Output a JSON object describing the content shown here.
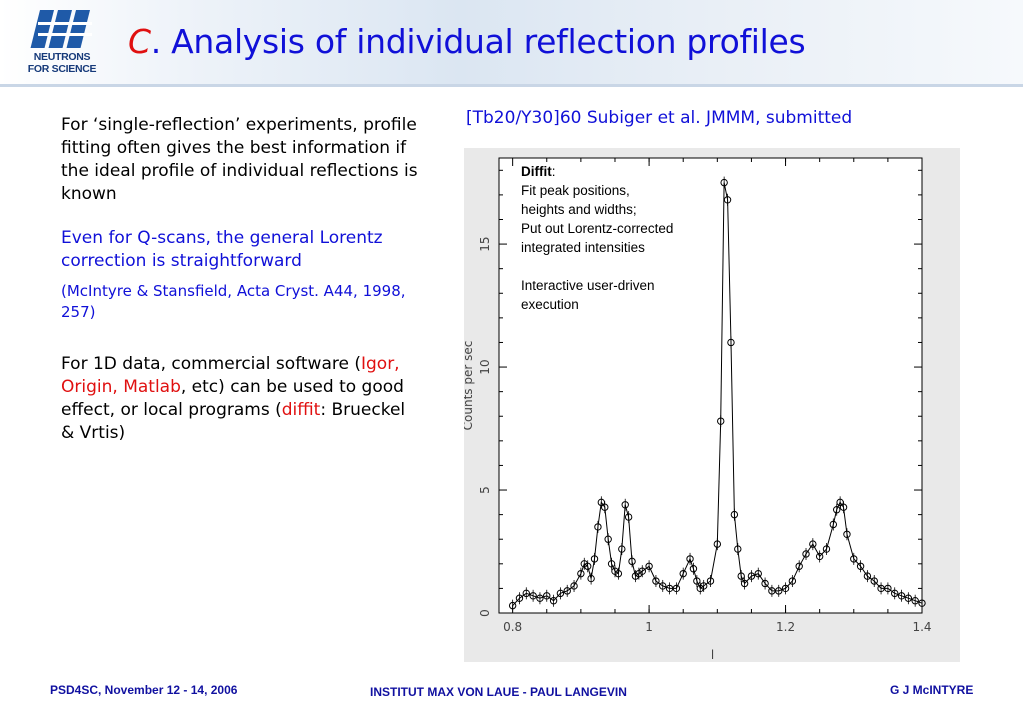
{
  "header": {
    "logo_text_1": "NEUTRONS",
    "logo_text_2": "FOR SCIENCE",
    "title_prefix": "C",
    "title_rest": ". Analysis of individual reflection profiles"
  },
  "left": {
    "p1": "For ‘single-reflection’ experiments, profile fitting often gives the best information if the ideal profile of individual reflections is known",
    "p2": "Even for Q-scans, the general Lorentz correction is straightforward",
    "p3": "(McIntyre & Stansfield, Acta Cryst. A44, 1998, 257)",
    "p4_a": "For 1D data, commercial software (",
    "p4_b": "Igor, Origin, Matlab",
    "p4_c": ", etc) can be used to good effect, or local programs (",
    "p4_d": "diffit",
    "p4_e": ": Brueckel & Vrtis)"
  },
  "right": {
    "reference": "[Tb20/Y30]60 Subiger et al. JMMM, submitted",
    "annot_title": "Diffit",
    "annot_colon": ":",
    "annot_l1": "Fit peak positions,",
    "annot_l2": "heights and widths;",
    "annot_l3": "Put out Lorentz-corrected",
    "annot_l4": "integrated intensities",
    "annot_l5": "Interactive user-driven",
    "annot_l6": "execution"
  },
  "chart_data": {
    "type": "scatter",
    "xlabel": "l",
    "ylabel": "Counts per sec",
    "xlim": [
      0.78,
      1.4
    ],
    "ylim": [
      0,
      18.5
    ],
    "xticks": [
      "0.8",
      "1",
      "1.2",
      "1.4"
    ],
    "yticks": [
      "0",
      "5",
      "10",
      "15"
    ],
    "background": "#e9e9e9",
    "series": [
      {
        "points": [
          [
            0.8,
            0.3
          ],
          [
            0.81,
            0.6
          ],
          [
            0.82,
            0.8
          ],
          [
            0.83,
            0.7
          ],
          [
            0.84,
            0.6
          ],
          [
            0.85,
            0.7
          ],
          [
            0.86,
            0.5
          ],
          [
            0.87,
            0.8
          ],
          [
            0.88,
            0.9
          ],
          [
            0.89,
            1.1
          ],
          [
            0.9,
            1.6
          ],
          [
            0.905,
            2.0
          ],
          [
            0.91,
            1.9
          ],
          [
            0.915,
            1.4
          ],
          [
            0.92,
            2.2
          ],
          [
            0.925,
            3.5
          ],
          [
            0.93,
            4.5
          ],
          [
            0.935,
            4.3
          ],
          [
            0.94,
            3.0
          ],
          [
            0.945,
            2.0
          ],
          [
            0.95,
            1.7
          ],
          [
            0.955,
            1.6
          ],
          [
            0.96,
            2.6
          ],
          [
            0.965,
            4.4
          ],
          [
            0.97,
            3.9
          ],
          [
            0.975,
            2.1
          ],
          [
            0.98,
            1.5
          ],
          [
            0.985,
            1.6
          ],
          [
            0.99,
            1.7
          ],
          [
            1.0,
            1.9
          ],
          [
            1.01,
            1.3
          ],
          [
            1.02,
            1.1
          ],
          [
            1.03,
            1.0
          ],
          [
            1.04,
            1.0
          ],
          [
            1.05,
            1.6
          ],
          [
            1.06,
            2.2
          ],
          [
            1.065,
            1.8
          ],
          [
            1.07,
            1.3
          ],
          [
            1.075,
            1.0
          ],
          [
            1.08,
            1.1
          ],
          [
            1.09,
            1.3
          ],
          [
            1.1,
            2.8
          ],
          [
            1.105,
            7.8
          ],
          [
            1.11,
            17.5
          ],
          [
            1.115,
            16.8
          ],
          [
            1.12,
            11.0
          ],
          [
            1.125,
            4.0
          ],
          [
            1.13,
            2.6
          ],
          [
            1.135,
            1.5
          ],
          [
            1.14,
            1.2
          ],
          [
            1.15,
            1.5
          ],
          [
            1.16,
            1.6
          ],
          [
            1.17,
            1.2
          ],
          [
            1.18,
            0.9
          ],
          [
            1.19,
            0.9
          ],
          [
            1.2,
            1.0
          ],
          [
            1.21,
            1.3
          ],
          [
            1.22,
            1.9
          ],
          [
            1.23,
            2.4
          ],
          [
            1.24,
            2.8
          ],
          [
            1.25,
            2.3
          ],
          [
            1.26,
            2.6
          ],
          [
            1.27,
            3.6
          ],
          [
            1.275,
            4.2
          ],
          [
            1.28,
            4.5
          ],
          [
            1.285,
            4.3
          ],
          [
            1.29,
            3.2
          ],
          [
            1.3,
            2.2
          ],
          [
            1.31,
            1.9
          ],
          [
            1.32,
            1.5
          ],
          [
            1.33,
            1.3
          ],
          [
            1.34,
            1.0
          ],
          [
            1.35,
            1.0
          ],
          [
            1.36,
            0.8
          ],
          [
            1.37,
            0.7
          ],
          [
            1.38,
            0.6
          ],
          [
            1.39,
            0.5
          ],
          [
            1.4,
            0.4
          ]
        ]
      }
    ]
  },
  "footer": {
    "left": "PSD4SC, November 12 - 14, 2006",
    "center": "INSTITUT MAX VON LAUE - PAUL LANGEVIN",
    "right": "G J McINTYRE"
  }
}
